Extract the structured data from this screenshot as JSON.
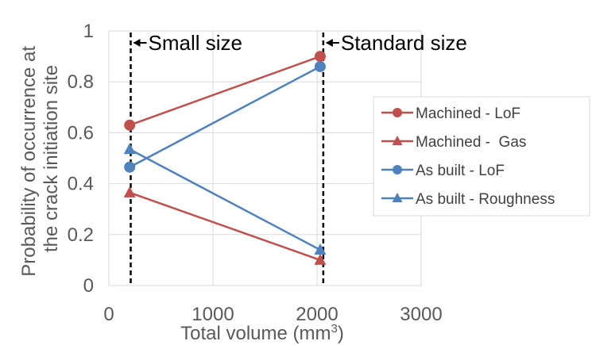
{
  "chart_data": {
    "type": "line",
    "xlabel": "Total volume (mm³)",
    "ylabel_lines": [
      "Probability of occurrence at",
      "the crack initiation site"
    ],
    "xlim": [
      0,
      3000
    ],
    "ylim": [
      0,
      1
    ],
    "x_ticks": [
      0,
      1000,
      2000,
      3000
    ],
    "y_ticks": [
      0,
      0.2,
      0.4,
      0.6,
      0.8,
      1
    ],
    "x_tick_labels": [
      "0",
      "1000",
      "2000",
      "3000"
    ],
    "y_tick_labels": [
      "0",
      "0.2",
      "0.4",
      "0.6",
      "0.8",
      "1"
    ],
    "grid": true,
    "legend_position": "right",
    "vertical_lines": [
      {
        "x": 210,
        "label": "Small size",
        "style": "dashed"
      },
      {
        "x": 2060,
        "label": "Standard size",
        "style": "dashed"
      }
    ],
    "series": [
      {
        "name": "Machined - LoF",
        "marker": "circle",
        "color": "#c0504d",
        "x": [
          200,
          2030
        ],
        "y": [
          0.63,
          0.9
        ]
      },
      {
        "name": "Machined -  Gas",
        "marker": "triangle",
        "color": "#c0504d",
        "x": [
          200,
          2030
        ],
        "y": [
          0.365,
          0.1
        ]
      },
      {
        "name": "As built - LoF",
        "marker": "circle",
        "color": "#4f81bd",
        "x": [
          200,
          2030
        ],
        "y": [
          0.465,
          0.86
        ]
      },
      {
        "name": "As built - Roughness",
        "marker": "triangle",
        "color": "#4f81bd",
        "x": [
          200,
          2030
        ],
        "y": [
          0.535,
          0.14
        ]
      }
    ]
  }
}
